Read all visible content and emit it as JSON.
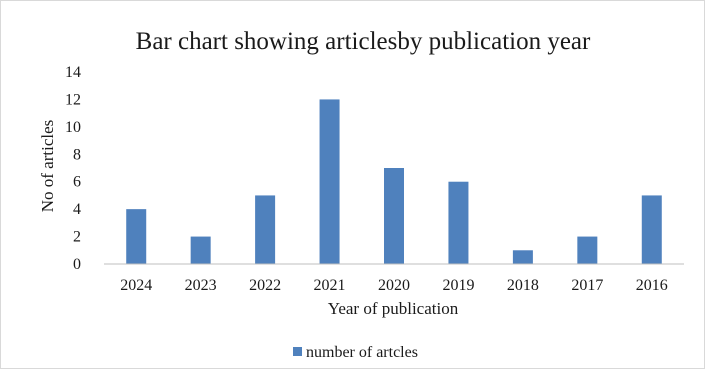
{
  "colors": {
    "bar": "#4f81bd",
    "axis": "#bfbfbf",
    "text": "#1a1a1a"
  },
  "chart_data": {
    "type": "bar",
    "title": "Bar chart showing articlesby publication year",
    "xlabel": "Year of publication",
    "ylabel": "No of articles",
    "categories": [
      "2024",
      "2023",
      "2022",
      "2021",
      "2020",
      "2019",
      "2018",
      "2017",
      "2016"
    ],
    "series": [
      {
        "name": "number of artcles",
        "values": [
          4,
          2,
          5,
          12,
          7,
          6,
          1,
          2,
          5
        ]
      }
    ],
    "ylim": [
      0,
      14
    ],
    "yticks": [
      0,
      2,
      4,
      6,
      8,
      10,
      12,
      14
    ],
    "grid": false,
    "legend": "bottom"
  }
}
